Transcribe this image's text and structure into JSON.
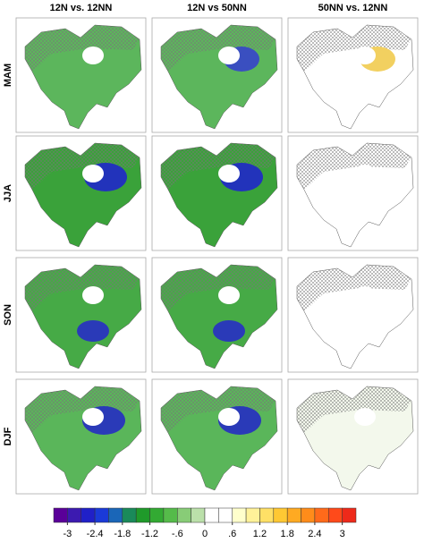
{
  "columns": [
    "12N vs. 12NN",
    "12N vs 50NN",
    "50NN vs. 12NN"
  ],
  "rows": [
    "MAM",
    "JJA",
    "SON",
    "DJF"
  ],
  "panels": [
    [
      {
        "land": "#5cb65c",
        "core": null
      },
      {
        "land": "#5cb65c",
        "core": "#3a4fc0"
      },
      {
        "land": "#ffffff",
        "core": "#f2d060"
      }
    ],
    [
      {
        "land": "#3aa23a",
        "core": "#2233bb"
      },
      {
        "land": "#3aa23a",
        "core": "#2233bb"
      },
      {
        "land": "#ffffff",
        "core": null
      }
    ],
    [
      {
        "land": "#46aa46",
        "core": "#2a3ab8"
      },
      {
        "land": "#46aa46",
        "core": "#2a3ab8"
      },
      {
        "land": "#ffffff",
        "core": null
      }
    ],
    [
      {
        "land": "#5ab65a",
        "core": "#2a3ab8"
      },
      {
        "land": "#5ab65a",
        "core": "#2a3ab8"
      },
      {
        "land": "#f3f8ec",
        "core": null
      }
    ]
  ],
  "colorbar": {
    "xlim": [
      -3.3,
      3.3
    ],
    "ticks": [
      -3,
      -2.4,
      -1.8,
      -1.2,
      {
        "value": -0.6,
        "label": "-.6"
      },
      0,
      {
        "value": 0.6,
        "label": ".6"
      },
      1.2,
      1.8,
      2.4,
      3
    ],
    "colors": [
      "#5a0099",
      "#3c1ab0",
      "#2020c8",
      "#1a3ad8",
      "#1a66b8",
      "#1a8a5a",
      "#1f9a2a",
      "#33aa33",
      "#55bb4a",
      "#88cc77",
      "#bbe0aa",
      "#ffffff",
      "#ffffff",
      "#ffffcc",
      "#fff299",
      "#ffe066",
      "#ffc833",
      "#ffaa22",
      "#ff8c1a",
      "#ff6a1a",
      "#ff4a1a",
      "#ee2a1a"
    ]
  }
}
